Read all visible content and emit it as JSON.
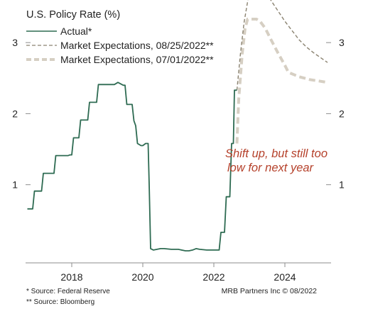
{
  "chart_data": {
    "type": "line",
    "title": "U.S. Policy Rate (%)",
    "xlabel": "",
    "ylabel": "",
    "xlim": [
      2016.7,
      2025.3
    ],
    "ylim": [
      -0.1,
      3.4
    ],
    "x_ticks": [
      2018,
      2020,
      2022,
      2024
    ],
    "x_tick_labels": [
      "2018",
      "2020",
      "2022",
      "2024"
    ],
    "y_ticks": [
      1,
      2,
      3
    ],
    "y_tick_labels": [
      "1",
      "2",
      "3"
    ],
    "grid": false,
    "legend_position": "top-left",
    "legend": [
      {
        "label": "Actual*",
        "style": "solid",
        "color": "#2e6b52"
      },
      {
        "label": "Market Expectations, 08/25/2022**",
        "style": "dashed",
        "color": "#8a8270"
      },
      {
        "label": "Market Expectations, 07/01/2022**",
        "style": "dashed-thick",
        "color": "#d6cfc3"
      }
    ],
    "series": [
      {
        "name": "Actual*",
        "color": "#2e6b52",
        "points": [
          [
            2016.75,
            0.66
          ],
          [
            2016.9,
            0.66
          ],
          [
            2016.95,
            0.91
          ],
          [
            2017.15,
            0.91
          ],
          [
            2017.2,
            1.16
          ],
          [
            2017.45,
            1.16
          ],
          [
            2017.5,
            1.16
          ],
          [
            2017.55,
            1.41
          ],
          [
            2017.9,
            1.41
          ],
          [
            2017.95,
            1.42
          ],
          [
            2018.0,
            1.42
          ],
          [
            2018.05,
            1.66
          ],
          [
            2018.2,
            1.66
          ],
          [
            2018.25,
            1.91
          ],
          [
            2018.45,
            1.91
          ],
          [
            2018.5,
            2.16
          ],
          [
            2018.7,
            2.16
          ],
          [
            2018.75,
            2.41
          ],
          [
            2018.95,
            2.41
          ],
          [
            2019.0,
            2.41
          ],
          [
            2019.05,
            2.41
          ],
          [
            2019.2,
            2.41
          ],
          [
            2019.3,
            2.44
          ],
          [
            2019.45,
            2.4
          ],
          [
            2019.5,
            2.4
          ],
          [
            2019.55,
            2.13
          ],
          [
            2019.7,
            2.13
          ],
          [
            2019.75,
            1.9
          ],
          [
            2019.8,
            1.83
          ],
          [
            2019.85,
            1.58
          ],
          [
            2019.95,
            1.55
          ],
          [
            2020.0,
            1.55
          ],
          [
            2020.08,
            1.58
          ],
          [
            2020.15,
            1.58
          ],
          [
            2020.18,
            1.0
          ],
          [
            2020.22,
            0.1
          ],
          [
            2020.3,
            0.08
          ],
          [
            2020.4,
            0.09
          ],
          [
            2020.5,
            0.1
          ],
          [
            2020.6,
            0.1
          ],
          [
            2020.8,
            0.09
          ],
          [
            2021.0,
            0.09
          ],
          [
            2021.2,
            0.07
          ],
          [
            2021.3,
            0.07
          ],
          [
            2021.4,
            0.08
          ],
          [
            2021.5,
            0.1
          ],
          [
            2021.6,
            0.09
          ],
          [
            2021.8,
            0.08
          ],
          [
            2021.9,
            0.08
          ],
          [
            2022.0,
            0.08
          ],
          [
            2022.15,
            0.08
          ],
          [
            2022.2,
            0.33
          ],
          [
            2022.3,
            0.33
          ],
          [
            2022.35,
            0.83
          ],
          [
            2022.45,
            0.83
          ],
          [
            2022.5,
            1.58
          ],
          [
            2022.55,
            1.58
          ],
          [
            2022.58,
            2.33
          ],
          [
            2022.65,
            2.33
          ]
        ]
      },
      {
        "name": "Market Expectations, 08/25/2022**",
        "color": "#8a8270",
        "points": [
          [
            2022.65,
            2.33
          ],
          [
            2022.75,
            2.85
          ],
          [
            2022.85,
            3.28
          ],
          [
            2023.0,
            3.72
          ],
          [
            2023.1,
            3.77
          ],
          [
            2023.25,
            3.76
          ],
          [
            2023.4,
            3.72
          ],
          [
            2023.6,
            3.6
          ],
          [
            2023.8,
            3.45
          ],
          [
            2024.0,
            3.3
          ],
          [
            2024.2,
            3.17
          ],
          [
            2024.4,
            3.04
          ],
          [
            2024.6,
            2.94
          ],
          [
            2024.8,
            2.86
          ],
          [
            2025.0,
            2.79
          ],
          [
            2025.2,
            2.72
          ]
        ]
      },
      {
        "name": "Market Expectations, 07/01/2022**",
        "color": "#d6cfc3",
        "points": [
          [
            2022.65,
            1.58
          ],
          [
            2022.7,
            2.2
          ],
          [
            2022.8,
            2.85
          ],
          [
            2022.88,
            3.2
          ],
          [
            2022.95,
            3.33
          ],
          [
            2023.2,
            3.33
          ],
          [
            2023.3,
            3.3
          ],
          [
            2023.45,
            3.2
          ],
          [
            2023.6,
            3.05
          ],
          [
            2023.8,
            2.86
          ],
          [
            2024.0,
            2.68
          ],
          [
            2024.1,
            2.58
          ],
          [
            2024.4,
            2.52
          ],
          [
            2024.7,
            2.48
          ],
          [
            2025.2,
            2.44
          ]
        ]
      }
    ],
    "annotation": {
      "lines": [
        "Shift up, but still too",
        "low for next year"
      ],
      "color": "#b5412b"
    },
    "footnotes": [
      "*  Source: Federal Reserve",
      "** Source: Bloomberg"
    ],
    "credit": "MRB Partners Inc © 08/2022"
  }
}
